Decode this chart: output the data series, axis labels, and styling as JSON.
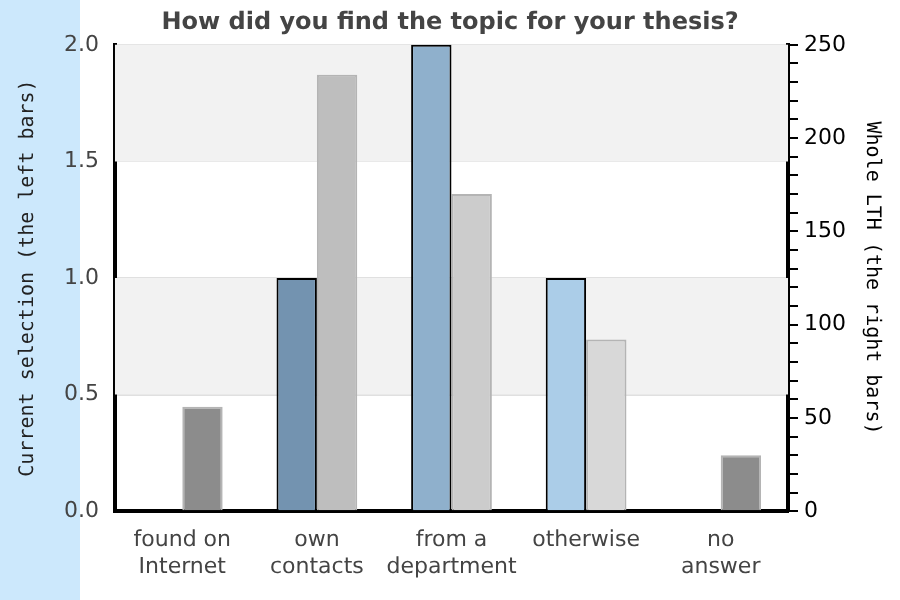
{
  "chart_data": {
    "type": "bar",
    "title": "How did you find the topic for your thesis?",
    "ylabel": "Current selection (the left bars)",
    "y2label": "Whole LTH (the right bars)",
    "categories": [
      "found on Internet",
      "own contacts",
      "from a department",
      "otherwise",
      "no answer"
    ],
    "series": [
      {
        "colors": [
          "#7393b0",
          "#7393b0",
          "#8fb0cc",
          "#abcde8",
          "#abcde8"
        ],
        "values": [
          0,
          1,
          2,
          1,
          0
        ]
      },
      {
        "axis": "y2",
        "colors": [
          "#8c8c8c",
          "#bebebe",
          "#cccccc",
          "#d8d8d8",
          "#8c8c8c"
        ],
        "values": [
          56,
          234,
          170,
          92,
          30
        ]
      }
    ],
    "ylim": [
      0,
      2
    ],
    "yticks": [
      {
        "value": 0,
        "label": "0.0"
      },
      {
        "value": 0.5,
        "label": "0.5"
      },
      {
        "value": 1,
        "label": "1.0"
      },
      {
        "value": 1.5,
        "label": "1.5"
      },
      {
        "value": 2,
        "label": "2.0"
      }
    ],
    "y2lim": [
      0,
      250
    ],
    "y2ticks": [
      0,
      {
        "value": 10,
        "label": null
      },
      {
        "value": 20,
        "label": null
      },
      {
        "value": 30,
        "label": null
      },
      {
        "value": 40,
        "label": null
      },
      50,
      {
        "value": 60,
        "label": null
      },
      {
        "value": 70,
        "label": null
      },
      {
        "value": 80,
        "label": null
      },
      {
        "value": 90,
        "label": null
      },
      100,
      {
        "value": 110,
        "label": null
      },
      {
        "value": 120,
        "label": null
      },
      {
        "value": 130,
        "label": null
      },
      {
        "value": 140,
        "label": null
      },
      150,
      {
        "value": 160,
        "label": null
      },
      {
        "value": 170,
        "label": null
      },
      {
        "value": 180,
        "label": null
      },
      {
        "value": 190,
        "label": null
      },
      200,
      {
        "value": 210,
        "label": null
      },
      {
        "value": 220,
        "label": null
      },
      {
        "value": 230,
        "label": null
      },
      {
        "value": 240,
        "label": null
      },
      250
    ],
    "bands": [
      {
        "axis": "y",
        "from": 0.5,
        "to": 1,
        "color": "#f2f2f2"
      },
      {
        "axis": "y",
        "from": 1.5,
        "to": 2,
        "color": "#f2f2f2"
      }
    ],
    "grid": "y",
    "legend": false
  }
}
